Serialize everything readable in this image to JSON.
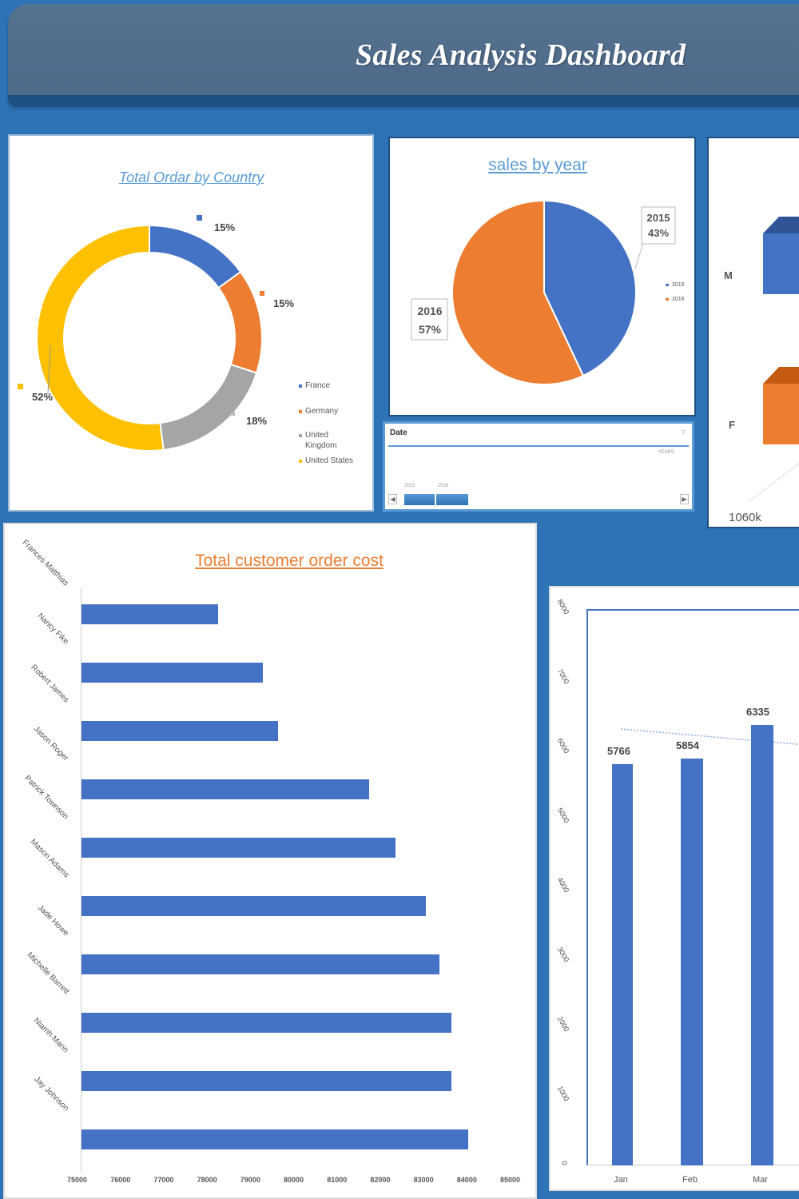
{
  "header": {
    "title": "Sales Analysis Dashboard"
  },
  "colors": {
    "background": "#2e73b6",
    "header": "#4e6a8a",
    "blue": "#4472c4",
    "orange": "#ed7d31",
    "gray": "#a5a5a5",
    "yellow": "#ffc000",
    "title_blue": "#5b9bd5",
    "title_orange": "#ed7d31"
  },
  "timeline": {
    "header": "Date",
    "level": "YEARS",
    "years": [
      "2015",
      "2016"
    ],
    "clear_filter_icon": "filter-clear-icon",
    "scroll_left_icon": "arrow-left-icon",
    "scroll_right_icon": "arrow-right-icon"
  },
  "gender_chart": {
    "labels": [
      "M",
      "F"
    ],
    "axis_label": "1060k"
  },
  "chart_data": [
    {
      "type": "pie",
      "subtype": "doughnut",
      "title": "Total Ordar by Country",
      "categories": [
        "France",
        "Germany",
        "United Kingdom",
        "United States"
      ],
      "values": [
        15,
        15,
        18,
        52
      ],
      "labels": [
        "15%",
        "15%",
        "18%",
        "52%"
      ],
      "colors": [
        "#4472c4",
        "#ed7d31",
        "#a5a5a5",
        "#ffc000"
      ],
      "legend_position": "right"
    },
    {
      "type": "pie",
      "title": "sales by year",
      "categories": [
        "2015",
        "2016"
      ],
      "values": [
        43,
        57
      ],
      "labels": [
        "2015\n43%",
        "2016\n57%"
      ],
      "colors": [
        "#4472c4",
        "#ed7d31"
      ],
      "legend_position": "right"
    },
    {
      "type": "bar",
      "orientation": "horizontal",
      "title": "Total customer  order cost",
      "categories": [
        "Frances Matthias",
        "Nancy Fike",
        "Robert James",
        "Jason Roger",
        "Patrick Townson",
        "Mason Adams",
        "Jade Howe",
        "Michelle Barrett",
        "Niamh Mann",
        "Jay Johnson"
      ],
      "values": [
        78150,
        79180,
        79540,
        81640,
        82260,
        82950,
        83260,
        83540,
        83540,
        83930
      ],
      "xlim": [
        75000,
        85000
      ],
      "xticks": [
        "75000",
        "76000",
        "77000",
        "78000",
        "79000",
        "80000",
        "81000",
        "82000",
        "83000",
        "84000",
        "85000"
      ],
      "xlabel": "",
      "ylabel": "",
      "grid": false
    },
    {
      "type": "bar",
      "title": "",
      "categories": [
        "Jan",
        "Feb",
        "Mar"
      ],
      "values": [
        5766,
        5854,
        6335
      ],
      "data_labels": [
        "5766",
        "5854",
        "6335"
      ],
      "ylim": [
        0,
        8000
      ],
      "yticks": [
        "0",
        "1000",
        "2000",
        "3000",
        "4000",
        "5000",
        "6000",
        "7000",
        "8000"
      ],
      "trendline": "dotted",
      "xlabel": "",
      "ylabel": ""
    }
  ]
}
